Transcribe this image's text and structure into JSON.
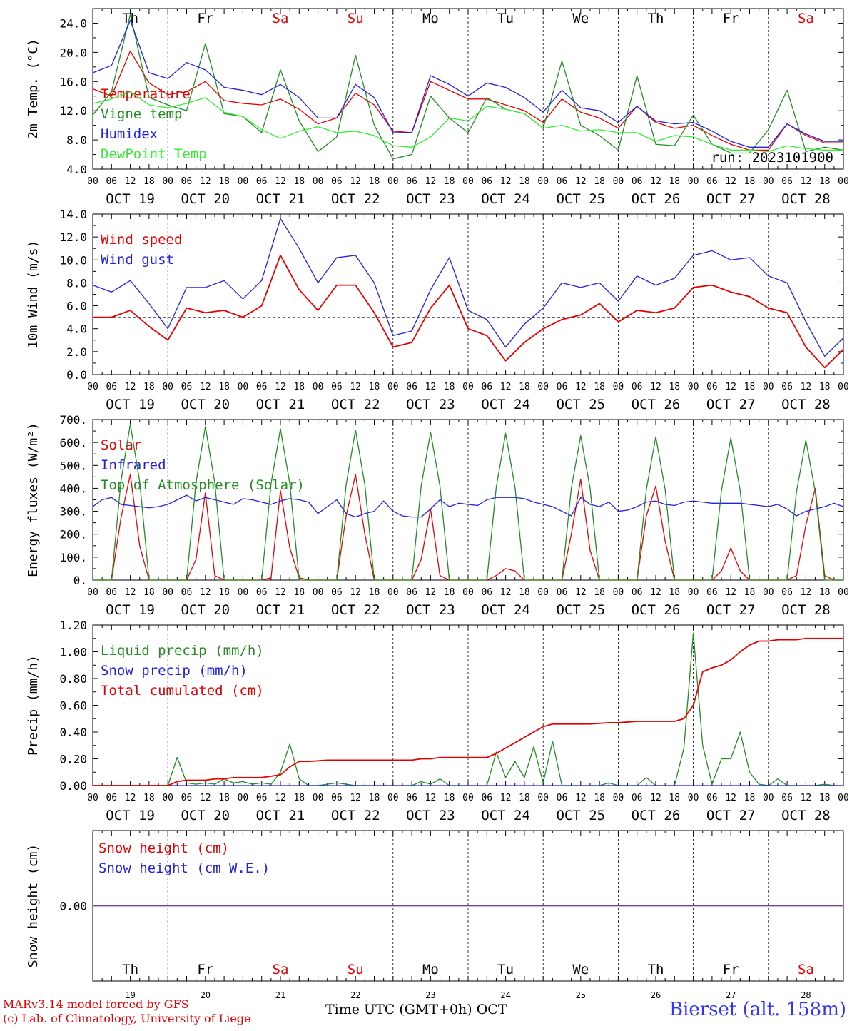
{
  "days": [
    "Th",
    "Fr",
    "Sa",
    "Su",
    "Mo",
    "Tu",
    "We",
    "Th",
    "Fr",
    "Sa"
  ],
  "weekend_days": [
    2,
    3,
    9
  ],
  "dates": [
    "OCT 19",
    "OCT 20",
    "OCT 21",
    "OCT 22",
    "OCT 23",
    "OCT 24",
    "OCT 25",
    "OCT 26",
    "OCT 27",
    "OCT 28"
  ],
  "bottom_day_numbers": [
    "19",
    "20",
    "21",
    "22",
    "23",
    "24",
    "25",
    "26",
    "27",
    "28"
  ],
  "hour_labels": [
    "00",
    "06",
    "12",
    "18"
  ],
  "run_label": "run: 2023101900",
  "footer": {
    "model": "MARv3.14 model forced by GFS",
    "copyright": "(c) Lab. of Climatology, University of Liege",
    "time_axis": "Time UTC (GMT+0h) OCT",
    "station": "Bierset (alt. 158m)"
  },
  "colors": {
    "red": "#e60000",
    "green": "#228b22",
    "blue": "#2222dd",
    "light_green": "#33ee33",
    "purple": "#7a3fa0"
  },
  "chart_data": [
    {
      "type": "line",
      "ylabel": "2m Temp. (°C)",
      "ylim": [
        4.0,
        26.0
      ],
      "yticks": [
        "4.0",
        "8.0",
        "12.0",
        "16.0",
        "20.0",
        "24.0"
      ],
      "x_hours": [
        0,
        6,
        12,
        18,
        24,
        30,
        36,
        42,
        48,
        54,
        60,
        66,
        72,
        78,
        84,
        90,
        96,
        102,
        108,
        114,
        120,
        126,
        132,
        138,
        144,
        150,
        156,
        162,
        168,
        174,
        180,
        186,
        192,
        198,
        204,
        210,
        216,
        222,
        228,
        234,
        240
      ],
      "series": [
        {
          "name": "Temperature",
          "color": "red",
          "values": [
            15.0,
            14.0,
            20.2,
            15.8,
            14.2,
            14.6,
            16.0,
            13.4,
            13.0,
            12.8,
            13.6,
            12.2,
            10.2,
            11.0,
            14.4,
            12.8,
            9.2,
            9.0,
            16.0,
            14.8,
            13.6,
            13.6,
            12.8,
            12.0,
            10.4,
            13.6,
            11.8,
            11.0,
            9.6,
            12.6,
            10.4,
            9.6,
            10.0,
            8.6,
            7.4,
            6.6,
            6.6,
            10.2,
            8.6,
            7.6,
            7.6
          ]
        },
        {
          "name": "Vigne temp",
          "color": "green",
          "values": [
            11.4,
            14.6,
            25.2,
            13.8,
            12.8,
            12.0,
            21.2,
            11.6,
            11.2,
            9.0,
            17.6,
            10.6,
            6.4,
            8.4,
            19.6,
            10.0,
            5.4,
            6.0,
            14.0,
            11.0,
            9.0,
            13.8,
            12.2,
            11.6,
            9.6,
            18.8,
            10.0,
            8.6,
            6.6,
            16.8,
            7.4,
            7.2,
            11.4,
            7.4,
            6.2,
            6.2,
            9.4,
            14.8,
            6.4,
            7.0,
            6.6
          ]
        },
        {
          "name": "Humidex",
          "color": "blue",
          "values": [
            17.2,
            18.2,
            24.4,
            17.2,
            16.4,
            18.6,
            17.6,
            15.2,
            14.8,
            14.2,
            15.6,
            13.8,
            11.0,
            11.0,
            15.6,
            13.8,
            9.0,
            9.0,
            16.8,
            15.6,
            14.0,
            15.8,
            15.2,
            13.8,
            11.8,
            14.8,
            12.4,
            12.0,
            10.4,
            12.6,
            10.6,
            10.2,
            10.4,
            9.2,
            7.8,
            7.0,
            7.0,
            10.2,
            8.8,
            7.8,
            7.8
          ]
        },
        {
          "name": "DewPoint Temp",
          "color": "light_green",
          "values": [
            13.0,
            13.6,
            14.6,
            12.8,
            12.4,
            13.0,
            13.8,
            11.8,
            11.2,
            9.4,
            8.2,
            9.2,
            9.8,
            9.0,
            9.2,
            8.6,
            7.2,
            7.0,
            8.4,
            11.0,
            10.6,
            12.6,
            12.2,
            11.6,
            9.6,
            10.0,
            9.2,
            9.4,
            9.0,
            9.0,
            7.8,
            8.6,
            8.4,
            7.4,
            6.6,
            6.6,
            6.4,
            7.2,
            6.8,
            6.6,
            6.6
          ]
        }
      ]
    },
    {
      "type": "line",
      "ylabel": "10m Wind (m/s)",
      "ylim": [
        0,
        14.0
      ],
      "yticks": [
        "0.0",
        "2.0",
        "4.0",
        "6.0",
        "8.0",
        "10.0",
        "12.0",
        "14.0"
      ],
      "reference_line": 5.0,
      "x_hours": [
        0,
        6,
        12,
        18,
        24,
        30,
        36,
        42,
        48,
        54,
        60,
        66,
        72,
        78,
        84,
        90,
        96,
        102,
        108,
        114,
        120,
        126,
        132,
        138,
        144,
        150,
        156,
        162,
        168,
        174,
        180,
        186,
        192,
        198,
        204,
        210,
        216,
        222,
        228,
        234,
        240
      ],
      "series": [
        {
          "name": "Wind speed",
          "color": "red",
          "values": [
            5.0,
            5.0,
            5.6,
            4.2,
            3.0,
            5.8,
            5.4,
            5.6,
            5.0,
            6.0,
            10.4,
            7.4,
            5.6,
            7.8,
            7.8,
            5.4,
            2.4,
            2.8,
            5.8,
            7.8,
            4.0,
            3.4,
            1.2,
            2.8,
            4.0,
            4.8,
            5.2,
            6.2,
            4.6,
            5.6,
            5.4,
            5.8,
            7.6,
            7.8,
            7.2,
            6.8,
            5.8,
            5.4,
            2.4,
            0.6,
            2.2
          ]
        },
        {
          "name": "Wind gust",
          "color": "blue",
          "values": [
            7.8,
            7.2,
            8.2,
            6.2,
            4.0,
            7.6,
            7.6,
            8.2,
            6.6,
            8.2,
            13.6,
            11.0,
            8.0,
            10.2,
            10.4,
            8.0,
            3.4,
            3.8,
            7.4,
            10.2,
            5.6,
            4.8,
            2.4,
            4.4,
            5.8,
            8.0,
            7.6,
            8.0,
            6.4,
            8.6,
            7.8,
            8.4,
            10.4,
            10.8,
            10.0,
            10.2,
            8.6,
            8.0,
            4.6,
            1.6,
            3.2
          ]
        }
      ]
    },
    {
      "type": "line",
      "ylabel": "Energy fluxes (W/m²)",
      "ylim": [
        0,
        700
      ],
      "yticks": [
        "0.",
        "100.",
        "200.",
        "300.",
        "400.",
        "500.",
        "600.",
        "700."
      ],
      "x_hours": [
        0,
        3,
        6,
        9,
        12,
        15,
        18,
        21,
        24,
        27,
        30,
        33,
        36,
        39,
        42,
        45,
        48,
        51,
        54,
        57,
        60,
        63,
        66,
        69,
        72,
        75,
        78,
        81,
        84,
        87,
        90,
        93,
        96,
        99,
        102,
        105,
        108,
        111,
        114,
        117,
        120,
        123,
        126,
        129,
        132,
        135,
        138,
        141,
        144,
        147,
        150,
        153,
        156,
        159,
        162,
        165,
        168,
        171,
        174,
        177,
        180,
        183,
        186,
        189,
        192,
        195,
        198,
        201,
        204,
        207,
        210,
        213,
        216,
        219,
        222,
        225,
        228,
        231,
        234,
        237,
        240
      ],
      "series": [
        {
          "name": "Solar",
          "color": "red",
          "values": [
            0,
            0,
            0,
            270,
            460,
            150,
            0,
            0,
            0,
            0,
            0,
            90,
            380,
            20,
            0,
            0,
            0,
            0,
            0,
            10,
            390,
            140,
            10,
            0,
            0,
            0,
            0,
            280,
            460,
            200,
            0,
            0,
            0,
            0,
            0,
            90,
            310,
            20,
            0,
            0,
            0,
            0,
            0,
            20,
            50,
            40,
            0,
            0,
            0,
            0,
            0,
            200,
            440,
            130,
            0,
            0,
            0,
            0,
            0,
            280,
            410,
            170,
            0,
            0,
            0,
            0,
            0,
            40,
            140,
            40,
            0,
            0,
            0,
            0,
            0,
            20,
            240,
            400,
            20,
            0,
            0
          ]
        },
        {
          "name": "Infrared",
          "color": "blue",
          "values": [
            320,
            350,
            360,
            330,
            325,
            320,
            315,
            320,
            330,
            350,
            370,
            345,
            360,
            350,
            340,
            330,
            355,
            350,
            340,
            330,
            345,
            355,
            350,
            340,
            290,
            320,
            350,
            290,
            275,
            290,
            300,
            345,
            300,
            280,
            275,
            275,
            310,
            350,
            320,
            335,
            330,
            325,
            350,
            360,
            360,
            360,
            355,
            340,
            330,
            320,
            300,
            280,
            360,
            330,
            320,
            340,
            300,
            305,
            320,
            340,
            345,
            330,
            325,
            340,
            345,
            340,
            335,
            335,
            335,
            335,
            330,
            325,
            320,
            330,
            310,
            280,
            300,
            310,
            320,
            335,
            320
          ]
        },
        {
          "name": "Top of Atmosphere (Solar)",
          "color": "green",
          "values": [
            0,
            0,
            0,
            430,
            680,
            430,
            0,
            0,
            0,
            0,
            0,
            425,
            670,
            425,
            0,
            0,
            0,
            0,
            0,
            420,
            660,
            420,
            0,
            0,
            0,
            0,
            0,
            415,
            655,
            415,
            0,
            0,
            0,
            0,
            0,
            410,
            645,
            410,
            0,
            0,
            0,
            0,
            0,
            405,
            640,
            405,
            0,
            0,
            0,
            0,
            0,
            400,
            630,
            400,
            0,
            0,
            0,
            0,
            0,
            395,
            625,
            395,
            0,
            0,
            0,
            0,
            0,
            390,
            620,
            390,
            0,
            0,
            0,
            0,
            0,
            385,
            610,
            385,
            0,
            0,
            0
          ]
        }
      ]
    },
    {
      "type": "line",
      "ylabel": "Precip (mm/h)",
      "ylim": [
        0,
        1.2
      ],
      "yticks": [
        "0.00",
        "0.20",
        "0.40",
        "0.60",
        "0.80",
        "1.00",
        "1.20"
      ],
      "x_hours": [
        0,
        3,
        6,
        9,
        12,
        15,
        18,
        21,
        24,
        27,
        30,
        33,
        36,
        39,
        42,
        45,
        48,
        51,
        54,
        57,
        60,
        63,
        66,
        69,
        72,
        75,
        78,
        81,
        84,
        87,
        90,
        93,
        96,
        99,
        102,
        105,
        108,
        111,
        114,
        117,
        120,
        123,
        126,
        129,
        132,
        135,
        138,
        141,
        144,
        147,
        150,
        153,
        156,
        159,
        162,
        165,
        168,
        171,
        174,
        177,
        180,
        183,
        186,
        189,
        192,
        195,
        198,
        201,
        204,
        207,
        210,
        213,
        216,
        219,
        222,
        225,
        228,
        231,
        234,
        237,
        240
      ],
      "series": [
        {
          "name": "Liquid precip (mm/h)",
          "color": "green",
          "values": [
            0,
            0,
            0,
            0,
            0,
            0,
            0,
            0,
            0,
            0.21,
            0.02,
            0.01,
            0.02,
            0.01,
            0.05,
            0.02,
            0.03,
            0.01,
            0.02,
            0.01,
            0.1,
            0.31,
            0.05,
            0,
            0,
            0.01,
            0.02,
            0.01,
            0,
            0,
            0,
            0,
            0,
            0,
            0,
            0.03,
            0.01,
            0.05,
            0,
            0,
            0,
            0,
            0,
            0.25,
            0.06,
            0.18,
            0.06,
            0.29,
            0.02,
            0.33,
            0,
            0,
            0,
            0,
            0,
            0.02,
            0,
            0,
            0,
            0.06,
            0,
            0,
            0,
            0.28,
            1.14,
            0.3,
            0.01,
            0.2,
            0.2,
            0.4,
            0.1,
            0.01,
            0,
            0.05,
            0,
            0,
            0,
            0,
            0.01,
            0,
            0
          ]
        },
        {
          "name": "Snow precip (mm/h)",
          "color": "blue",
          "values": [
            0,
            0,
            0,
            0,
            0,
            0,
            0,
            0,
            0,
            0,
            0,
            0,
            0,
            0,
            0,
            0,
            0,
            0,
            0,
            0,
            0,
            0,
            0,
            0,
            0,
            0,
            0,
            0,
            0,
            0,
            0,
            0,
            0,
            0,
            0,
            0,
            0,
            0,
            0,
            0,
            0,
            0,
            0,
            0,
            0,
            0,
            0,
            0,
            0,
            0,
            0,
            0,
            0,
            0,
            0,
            0,
            0,
            0,
            0,
            0,
            0,
            0,
            0,
            0,
            0,
            0,
            0,
            0,
            0,
            0,
            0,
            0,
            0,
            0,
            0,
            0,
            0,
            0,
            0,
            0,
            0
          ]
        },
        {
          "name": "Total cumulated (cm)",
          "color": "red",
          "values": [
            0,
            0,
            0,
            0,
            0,
            0,
            0,
            0,
            0,
            0.03,
            0.04,
            0.04,
            0.04,
            0.05,
            0.05,
            0.06,
            0.06,
            0.06,
            0.06,
            0.07,
            0.08,
            0.14,
            0.18,
            0.18,
            0.185,
            0.19,
            0.19,
            0.19,
            0.19,
            0.19,
            0.19,
            0.19,
            0.19,
            0.19,
            0.19,
            0.2,
            0.2,
            0.21,
            0.21,
            0.21,
            0.21,
            0.21,
            0.21,
            0.24,
            0.28,
            0.32,
            0.36,
            0.4,
            0.44,
            0.46,
            0.46,
            0.46,
            0.46,
            0.46,
            0.465,
            0.47,
            0.47,
            0.475,
            0.48,
            0.48,
            0.48,
            0.48,
            0.48,
            0.5,
            0.6,
            0.85,
            0.88,
            0.9,
            0.94,
            1.0,
            1.05,
            1.08,
            1.08,
            1.09,
            1.09,
            1.09,
            1.1,
            1.1,
            1.1,
            1.1,
            1.1
          ]
        }
      ]
    },
    {
      "type": "line",
      "ylabel": "Snow height (cm)",
      "ylim": [
        -1,
        1
      ],
      "yticks": [
        "0.00"
      ],
      "x_hours": [
        0,
        240
      ],
      "series": [
        {
          "name": "Snow height (cm)",
          "color": "red",
          "values": [
            0,
            0
          ]
        },
        {
          "name": "Snow height (cm W.E.)",
          "color": "blue",
          "values": [
            0,
            0
          ]
        }
      ]
    }
  ]
}
